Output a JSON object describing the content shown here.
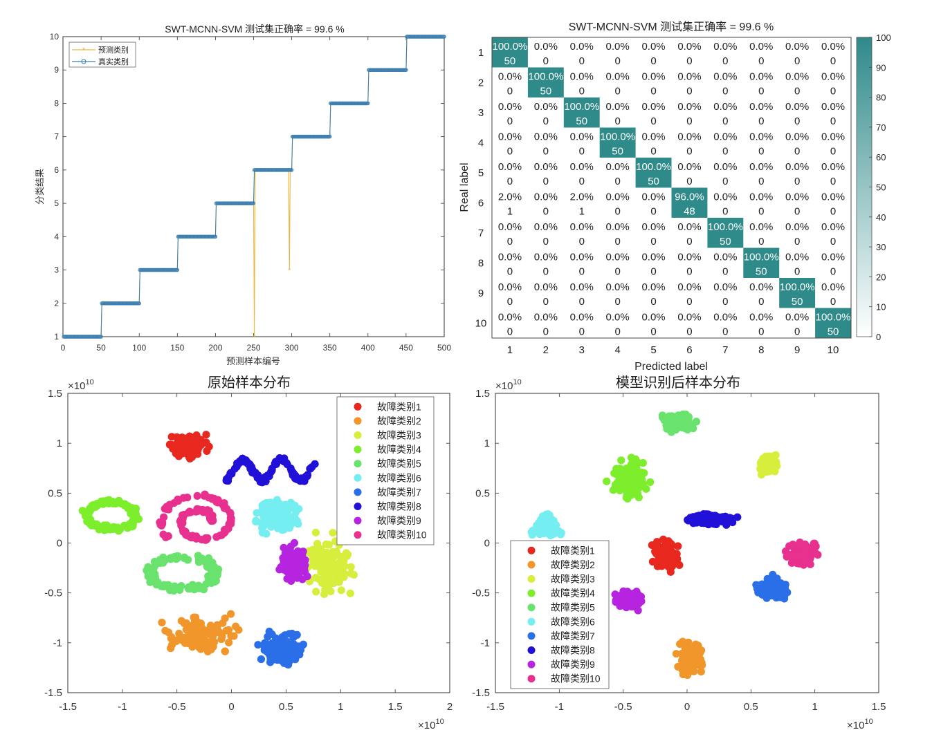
{
  "chart_data": [
    {
      "type": "line",
      "title": "SWT-MCNN-SVM 测试集正确率  = 99.6 %",
      "xlabel": "预测样本编号",
      "ylabel": "分类结果",
      "xlim": [
        0,
        500
      ],
      "ylim": [
        1,
        10
      ],
      "xticks": [
        0,
        50,
        100,
        150,
        200,
        250,
        300,
        350,
        400,
        450,
        500
      ],
      "yticks": [
        1,
        2,
        3,
        4,
        5,
        6,
        7,
        8,
        9,
        10
      ],
      "legend": [
        "预测类别",
        "真实类别"
      ],
      "legend_position": "top-left",
      "series": [
        {
          "name": "预测类别",
          "color": "#f0b43c",
          "marker": "star",
          "steps": [
            [
              1,
              50,
              1
            ],
            [
              51,
              100,
              2
            ],
            [
              101,
              150,
              3
            ],
            [
              151,
              200,
              4
            ],
            [
              201,
              250,
              5
            ],
            [
              251,
              300,
              6
            ],
            [
              301,
              350,
              7
            ],
            [
              351,
              400,
              8
            ],
            [
              401,
              450,
              9
            ],
            [
              451,
              500,
              10
            ]
          ],
          "exceptions": [
            [
              251,
              1
            ],
            [
              297,
              3
            ]
          ]
        },
        {
          "name": "真实类别",
          "color": "#3d7fb0",
          "marker": "circle",
          "steps": [
            [
              1,
              50,
              1
            ],
            [
              51,
              100,
              2
            ],
            [
              101,
              150,
              3
            ],
            [
              151,
              200,
              4
            ],
            [
              201,
              250,
              5
            ],
            [
              251,
              300,
              6
            ],
            [
              301,
              350,
              7
            ],
            [
              351,
              400,
              8
            ],
            [
              401,
              450,
              9
            ],
            [
              451,
              500,
              10
            ]
          ]
        }
      ]
    },
    {
      "type": "heatmap",
      "title": "SWT-MCNN-SVM 测试集正确率  = 99.6 %",
      "xlabel": "Predicted label",
      "ylabel": "Real label",
      "labels": [
        "1",
        "2",
        "3",
        "4",
        "5",
        "6",
        "7",
        "8",
        "9",
        "10"
      ],
      "colorbar_ticks": [
        0,
        10,
        20,
        30,
        40,
        50,
        60,
        70,
        80,
        90,
        100
      ],
      "colorbar_range": [
        0,
        100
      ],
      "diag_color": "#2f8a8a",
      "counts": [
        [
          50,
          0,
          0,
          0,
          0,
          0,
          0,
          0,
          0,
          0
        ],
        [
          0,
          50,
          0,
          0,
          0,
          0,
          0,
          0,
          0,
          0
        ],
        [
          0,
          0,
          50,
          0,
          0,
          0,
          0,
          0,
          0,
          0
        ],
        [
          0,
          0,
          0,
          50,
          0,
          0,
          0,
          0,
          0,
          0
        ],
        [
          0,
          0,
          0,
          0,
          50,
          0,
          0,
          0,
          0,
          0
        ],
        [
          1,
          0,
          1,
          0,
          0,
          48,
          0,
          0,
          0,
          0
        ],
        [
          0,
          0,
          0,
          0,
          0,
          0,
          50,
          0,
          0,
          0
        ],
        [
          0,
          0,
          0,
          0,
          0,
          0,
          0,
          50,
          0,
          0
        ],
        [
          0,
          0,
          0,
          0,
          0,
          0,
          0,
          0,
          50,
          0
        ],
        [
          0,
          0,
          0,
          0,
          0,
          0,
          0,
          0,
          0,
          50
        ]
      ],
      "percents": [
        [
          "100.0%",
          "0.0%",
          "0.0%",
          "0.0%",
          "0.0%",
          "0.0%",
          "0.0%",
          "0.0%",
          "0.0%",
          "0.0%"
        ],
        [
          "0.0%",
          "100.0%",
          "0.0%",
          "0.0%",
          "0.0%",
          "0.0%",
          "0.0%",
          "0.0%",
          "0.0%",
          "0.0%"
        ],
        [
          "0.0%",
          "0.0%",
          "100.0%",
          "0.0%",
          "0.0%",
          "0.0%",
          "0.0%",
          "0.0%",
          "0.0%",
          "0.0%"
        ],
        [
          "0.0%",
          "0.0%",
          "0.0%",
          "100.0%",
          "0.0%",
          "0.0%",
          "0.0%",
          "0.0%",
          "0.0%",
          "0.0%"
        ],
        [
          "0.0%",
          "0.0%",
          "0.0%",
          "0.0%",
          "100.0%",
          "0.0%",
          "0.0%",
          "0.0%",
          "0.0%",
          "0.0%"
        ],
        [
          "2.0%",
          "0.0%",
          "2.0%",
          "0.0%",
          "0.0%",
          "96.0%",
          "0.0%",
          "0.0%",
          "0.0%",
          "0.0%"
        ],
        [
          "0.0%",
          "0.0%",
          "0.0%",
          "0.0%",
          "0.0%",
          "0.0%",
          "100.0%",
          "0.0%",
          "0.0%",
          "0.0%"
        ],
        [
          "0.0%",
          "0.0%",
          "0.0%",
          "0.0%",
          "0.0%",
          "0.0%",
          "0.0%",
          "100.0%",
          "0.0%",
          "0.0%"
        ],
        [
          "0.0%",
          "0.0%",
          "0.0%",
          "0.0%",
          "0.0%",
          "0.0%",
          "0.0%",
          "0.0%",
          "100.0%",
          "0.0%"
        ],
        [
          "0.0%",
          "0.0%",
          "0.0%",
          "0.0%",
          "0.0%",
          "0.0%",
          "0.0%",
          "0.0%",
          "0.0%",
          "100.0%"
        ]
      ]
    },
    {
      "type": "scatter",
      "title": "原始样本分布",
      "xlim": [
        -1.5,
        2
      ],
      "ylim": [
        -1.5,
        1.5
      ],
      "xticks": [
        -1.5,
        -1,
        -0.5,
        0,
        0.5,
        1,
        1.5,
        2
      ],
      "yticks": [
        -1.5,
        -1,
        -0.5,
        0,
        0.5,
        1,
        1.5
      ],
      "xexp": "×10",
      "xexp_sup": "10",
      "yexp": "×10",
      "yexp_sup": "10",
      "legend_position": "top-right",
      "clusters": [
        {
          "name": "故障类别1",
          "color": "#e8281e",
          "cx": -0.4,
          "cy": 0.98,
          "rx": 0.23,
          "ry": 0.17,
          "shape": "blob",
          "n": 120
        },
        {
          "name": "故障类别2",
          "color": "#f0962a",
          "cx": -0.28,
          "cy": -0.92,
          "rx": 0.44,
          "ry": 0.28,
          "shape": "blob",
          "n": 110
        },
        {
          "name": "故障类别3",
          "color": "#d8ee3c",
          "cx": 0.88,
          "cy": -0.22,
          "rx": 0.35,
          "ry": 0.42,
          "shape": "blob",
          "n": 110
        },
        {
          "name": "故障类别4",
          "color": "#7cee2c",
          "cx": -1.1,
          "cy": 0.28,
          "rx": 0.28,
          "ry": 0.17,
          "shape": "ring",
          "n": 110
        },
        {
          "name": "故障类别5",
          "color": "#6ae36e",
          "cx": -0.45,
          "cy": -0.3,
          "rx": 0.37,
          "ry": 0.2,
          "shape": "ring",
          "n": 110
        },
        {
          "name": "故障类别6",
          "color": "#74eef0",
          "cx": 0.4,
          "cy": 0.27,
          "rx": 0.27,
          "ry": 0.22,
          "shape": "blob",
          "n": 140
        },
        {
          "name": "故障类别7",
          "color": "#2a6ee8",
          "cx": 0.47,
          "cy": -1.07,
          "rx": 0.28,
          "ry": 0.24,
          "shape": "blob",
          "n": 130
        },
        {
          "name": "故障类别8",
          "color": "#2010d8",
          "cx": 0.37,
          "cy": 0.73,
          "rx": 0.42,
          "ry": 0.13,
          "shape": "wave",
          "n": 110
        },
        {
          "name": "故障类别9",
          "color": "#b624e0",
          "cx": 0.58,
          "cy": -0.2,
          "rx": 0.2,
          "ry": 0.24,
          "shape": "blob",
          "n": 110
        },
        {
          "name": "故障类别10",
          "color": "#e8308e",
          "cx": -0.28,
          "cy": 0.22,
          "rx": 0.38,
          "ry": 0.3,
          "shape": "spiral",
          "n": 130
        }
      ]
    },
    {
      "type": "scatter",
      "title": "模型识别后样本分布",
      "xlim": [
        -1.5,
        1.5
      ],
      "ylim": [
        -1.5,
        1.5
      ],
      "xticks": [
        -1.5,
        -1,
        -0.5,
        0,
        0.5,
        1,
        1.5
      ],
      "yticks": [
        -1.5,
        -1,
        -0.5,
        0,
        0.5,
        1,
        1.5
      ],
      "xexp": "×10",
      "xexp_sup": "10",
      "yexp": "×10",
      "yexp_sup": "10",
      "legend_position": "bottom-left",
      "clusters": [
        {
          "name": "故障类别1",
          "color": "#e8281e",
          "cx": -0.17,
          "cy": -0.13,
          "rx": 0.14,
          "ry": 0.2,
          "shape": "blob",
          "n": 110
        },
        {
          "name": "故障类别2",
          "color": "#f0962a",
          "cx": 0.03,
          "cy": -1.17,
          "rx": 0.13,
          "ry": 0.22,
          "shape": "blob",
          "n": 110
        },
        {
          "name": "故障类别3",
          "color": "#d8ee3c",
          "cx": 0.63,
          "cy": 0.79,
          "rx": 0.1,
          "ry": 0.15,
          "shape": "blob",
          "n": 100
        },
        {
          "name": "故障类别4",
          "color": "#7cee2c",
          "cx": -0.45,
          "cy": 0.64,
          "rx": 0.21,
          "ry": 0.3,
          "shape": "blob",
          "n": 110
        },
        {
          "name": "故障类别5",
          "color": "#6ae36e",
          "cx": -0.07,
          "cy": 1.2,
          "rx": 0.16,
          "ry": 0.14,
          "shape": "blob",
          "n": 110
        },
        {
          "name": "故障类别6",
          "color": "#74eef0",
          "cx": -1.1,
          "cy": 0.18,
          "rx": 0.12,
          "ry": 0.11,
          "shape": "tri",
          "n": 90
        },
        {
          "name": "故障类别7",
          "color": "#2a6ee8",
          "cx": 0.66,
          "cy": -0.46,
          "rx": 0.17,
          "ry": 0.15,
          "shape": "blob",
          "n": 130
        },
        {
          "name": "故障类别8",
          "color": "#2010d8",
          "cx": 0.18,
          "cy": 0.24,
          "rx": 0.24,
          "ry": 0.07,
          "shape": "blob",
          "n": 100
        },
        {
          "name": "故障类别9",
          "color": "#b624e0",
          "cx": -0.45,
          "cy": -0.57,
          "rx": 0.14,
          "ry": 0.12,
          "shape": "blob",
          "n": 110
        },
        {
          "name": "故障类别10",
          "color": "#e8308e",
          "cx": 0.9,
          "cy": -0.1,
          "rx": 0.15,
          "ry": 0.15,
          "shape": "blob",
          "n": 110
        }
      ]
    }
  ]
}
